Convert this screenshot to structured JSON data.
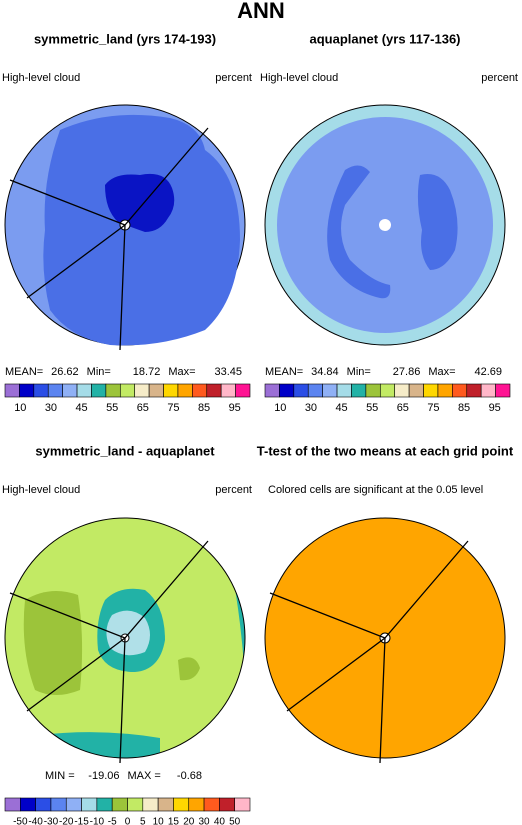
{
  "title": "ANN",
  "panels": [
    {
      "title": "symmetric_land (yrs 174-193)",
      "left_label": "High-level cloud",
      "right_label": "percent",
      "stats": [
        {
          "label": "MEAN=",
          "value": 26.62
        },
        {
          "label": "Min=",
          "value": 18.72
        },
        {
          "label": "Max=",
          "value": 33.45
        }
      ]
    },
    {
      "title": "aquaplanet (yrs 117-136)",
      "left_label": "High-level cloud",
      "right_label": "percent",
      "stats": [
        {
          "label": "MEAN=",
          "value": 34.84
        },
        {
          "label": "Min=",
          "value": 27.86
        },
        {
          "label": "Max=",
          "value": 42.69
        }
      ]
    },
    {
      "title": "symmetric_land - aquaplanet",
      "left_label": "High-level cloud",
      "right_label": "percent",
      "stats": [
        {
          "label": "MIN =",
          "value": -19.06
        },
        {
          "label": "MAX =",
          "value": -0.68
        }
      ]
    },
    {
      "title": "T-test of the two means at each grid point",
      "left_label": "Colored cells are significant at the 0.05 level"
    }
  ],
  "colorbars": [
    {
      "labels": [
        10,
        30,
        45,
        55,
        65,
        75,
        85,
        95
      ],
      "colors": [
        "#9b6fd6",
        "#0000c8",
        "#2b4ee6",
        "#5b84f0",
        "#8fb0f5",
        "#a5dce8",
        "#22b2a6",
        "#9cc43a",
        "#c2ea64",
        "#f6ecc8",
        "#d8b48a",
        "#ffd700",
        "#ffa500",
        "#ff5a1e",
        "#c0202a",
        "#ffb6c8",
        "#ff1493"
      ]
    },
    {
      "labels": [
        -50,
        -40,
        -30,
        -20,
        -15,
        -10,
        -5,
        0,
        5,
        10,
        15,
        20,
        30,
        40,
        50
      ],
      "colors": [
        "#9b6fd6",
        "#0000c8",
        "#2b4ee6",
        "#5b84f0",
        "#8fb0f5",
        "#a5dce8",
        "#22b2a6",
        "#9cc43a",
        "#c2ea64",
        "#f6ecc8",
        "#d8b48a",
        "#ffd700",
        "#ffa500",
        "#ff5a1e",
        "#c0202a",
        "#ffb6c8"
      ]
    }
  ]
}
